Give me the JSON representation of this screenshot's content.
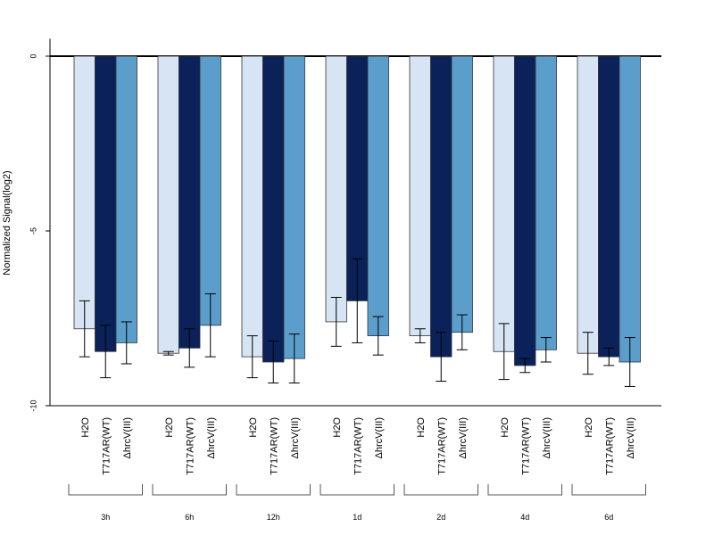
{
  "chart_data": {
    "type": "bar",
    "ylabel": "Normalized Signal(log2)",
    "ylim": [
      -10,
      0.5
    ],
    "yticks": [
      0,
      -5,
      -10
    ],
    "groups": [
      "3h",
      "6h",
      "12h",
      "1d",
      "2d",
      "4d",
      "6d"
    ],
    "treatments": [
      "H2O",
      "T717AR(WT)",
      "ΔhrcV(III)"
    ],
    "colors": [
      "#d6e4f4",
      "#0a2159",
      "#5b9ecc"
    ],
    "series": [
      {
        "values": [
          -7.8,
          -8.5,
          -8.6,
          -7.6,
          -8.0,
          -8.45,
          -8.5
        ],
        "err": [
          0.8,
          0.05,
          0.6,
          0.7,
          0.2,
          0.8,
          0.6
        ]
      },
      {
        "values": [
          -8.45,
          -8.35,
          -8.75,
          -7.0,
          -8.6,
          -8.85,
          -8.6
        ],
        "err": [
          0.75,
          0.55,
          0.6,
          1.2,
          0.7,
          0.2,
          0.25
        ]
      },
      {
        "values": [
          -8.2,
          -7.7,
          -8.65,
          -8.0,
          -7.9,
          -8.4,
          -8.75
        ],
        "err": [
          0.6,
          0.9,
          0.7,
          0.55,
          0.5,
          0.35,
          0.7
        ]
      }
    ]
  }
}
